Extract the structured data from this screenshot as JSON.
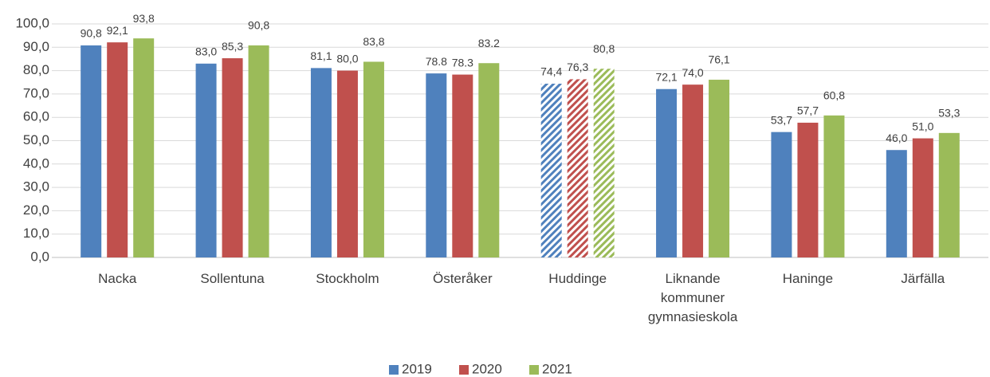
{
  "chart_data": {
    "type": "bar",
    "categories": [
      "Nacka",
      "Sollentuna",
      "Stockholm",
      "Österåker",
      "Huddinge",
      "Liknande kommuner gymnasieskola",
      "Haninge",
      "Järfälla"
    ],
    "series": [
      {
        "name": "2019",
        "color": "#4f81bd",
        "values": [
          90.8,
          83.0,
          81.1,
          78.8,
          74.4,
          72.1,
          53.7,
          46.0
        ],
        "value_labels": [
          "90,8",
          "83,0",
          "81,1",
          "78.8",
          "74,4",
          "72,1",
          "53,7",
          "46,0"
        ]
      },
      {
        "name": "2020",
        "color": "#c0504d",
        "values": [
          92.1,
          85.3,
          80.0,
          78.3,
          76.3,
          74.0,
          57.7,
          51.0
        ],
        "value_labels": [
          "92,1",
          "85,3",
          "80,0",
          "78.3",
          "76,3",
          "74,0",
          "57,7",
          "51,0"
        ]
      },
      {
        "name": "2021",
        "color": "#9bbb59",
        "values": [
          93.8,
          90.8,
          83.8,
          83.2,
          80.8,
          76.1,
          60.8,
          53.3
        ],
        "value_labels": [
          "93,8",
          "90,8",
          "83,8",
          "83.2",
          "80,8",
          "76,1",
          "60,8",
          "53,3"
        ]
      }
    ],
    "hatched_categories": [
      "Huddinge"
    ],
    "ylim": [
      0,
      100
    ],
    "yticks": [
      {
        "value": 0,
        "label": "0,0"
      },
      {
        "value": 10,
        "label": "10,0"
      },
      {
        "value": 20,
        "label": "20,0"
      },
      {
        "value": 30,
        "label": "30,0"
      },
      {
        "value": 40,
        "label": "40,0"
      },
      {
        "value": 50,
        "label": "50,0"
      },
      {
        "value": 60,
        "label": "60,0"
      },
      {
        "value": 70,
        "label": "70,0"
      },
      {
        "value": 80,
        "label": "80,0"
      },
      {
        "value": 90,
        "label": "90,0"
      },
      {
        "value": 100,
        "label": "100,0"
      }
    ],
    "grid": true,
    "legend": "bottom"
  }
}
